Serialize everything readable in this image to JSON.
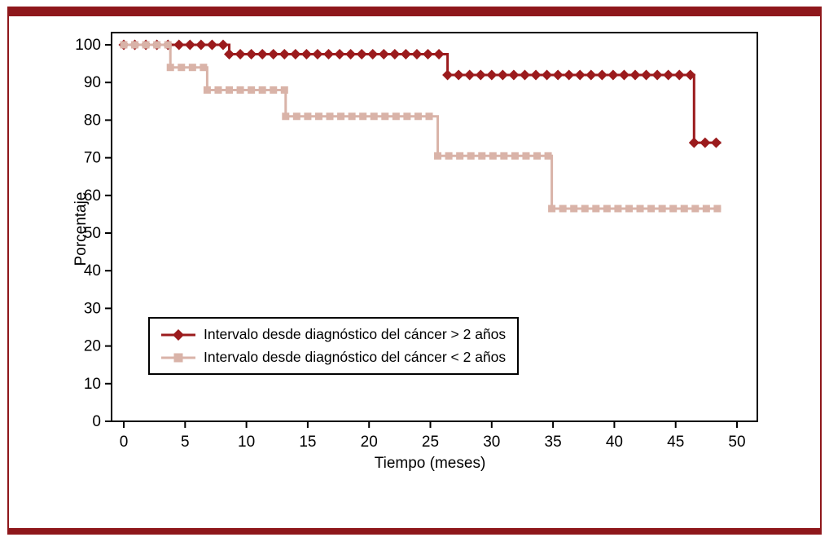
{
  "colors": {
    "maroon": "#9b1b1d",
    "frame": "#8e171b",
    "pink": "#d9b3a8",
    "axis": "#000000",
    "background": "#ffffff"
  },
  "chart_data": {
    "type": "line",
    "subtype": "kaplan-meier-step",
    "title": "",
    "xlabel": "Tiempo (meses)",
    "ylabel": "Porcentaje",
    "xlim": [
      0,
      50
    ],
    "ylim": [
      0,
      100
    ],
    "x_ticks": [
      0,
      5,
      10,
      15,
      20,
      25,
      30,
      35,
      40,
      45,
      50
    ],
    "y_ticks": [
      0,
      10,
      20,
      30,
      40,
      50,
      60,
      70,
      80,
      90,
      100
    ],
    "grid": false,
    "legend_position": "lower-left-inside",
    "marker_interval": 0.9,
    "series": [
      {
        "name": "Intervalo desde diagnóstico del cáncer > 2 años",
        "marker": "diamond",
        "color": "#9b1b1d",
        "steps": [
          [
            0,
            100
          ],
          [
            8.6,
            100
          ],
          [
            8.6,
            97.5
          ],
          [
            26.4,
            97.5
          ],
          [
            26.4,
            92
          ],
          [
            46.5,
            92
          ],
          [
            46.5,
            74
          ],
          [
            48.7,
            74
          ]
        ]
      },
      {
        "name": "Intervalo desde diagnóstico del cáncer < 2 años",
        "marker": "square",
        "color": "#d9b3a8",
        "steps": [
          [
            0,
            100
          ],
          [
            3.8,
            100
          ],
          [
            3.8,
            94
          ],
          [
            6.8,
            94
          ],
          [
            6.8,
            88
          ],
          [
            13.2,
            88
          ],
          [
            13.2,
            81
          ],
          [
            25.6,
            81
          ],
          [
            25.6,
            70.5
          ],
          [
            34.9,
            70.5
          ],
          [
            34.9,
            56.5
          ],
          [
            48.7,
            56.5
          ]
        ]
      }
    ]
  }
}
